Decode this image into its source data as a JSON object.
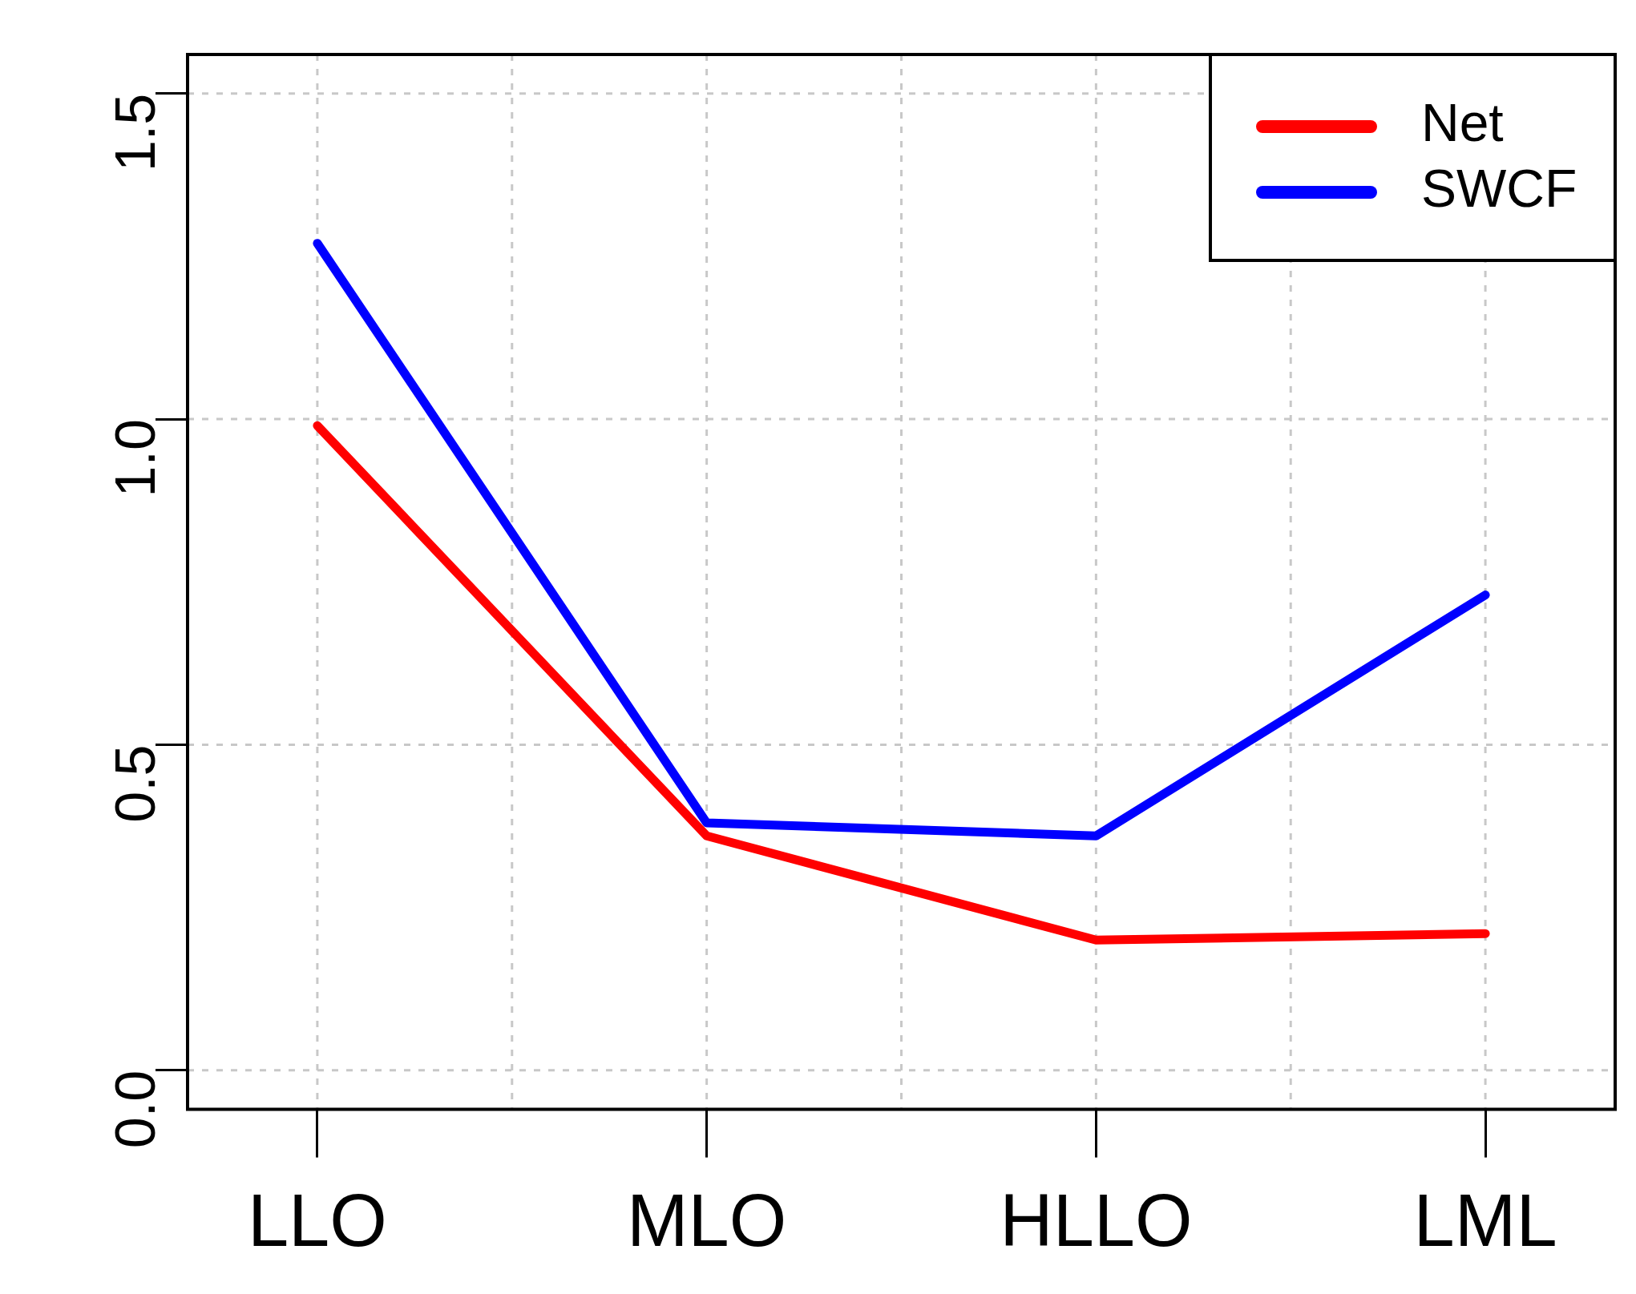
{
  "chart_data": {
    "type": "line",
    "categories": [
      "LLO",
      "MLO",
      "HLLO",
      "LML"
    ],
    "series": [
      {
        "name": "Net",
        "color": "#ff0000",
        "values": [
          0.99,
          0.36,
          0.2,
          0.21
        ]
      },
      {
        "name": "SWCF",
        "color": "#0000ff",
        "values": [
          1.27,
          0.38,
          0.36,
          0.73
        ]
      }
    ],
    "ylim": [
      -0.06,
      1.56
    ],
    "yticks": [
      {
        "value": 0,
        "label": "0.0"
      },
      {
        "value": 0.5,
        "label": "0.5"
      },
      {
        "value": 1,
        "label": "1.0"
      },
      {
        "value": 1.5,
        "label": "1.5"
      }
    ],
    "grid": true,
    "legend": "top right",
    "marker": "none",
    "line_style": "solid"
  }
}
